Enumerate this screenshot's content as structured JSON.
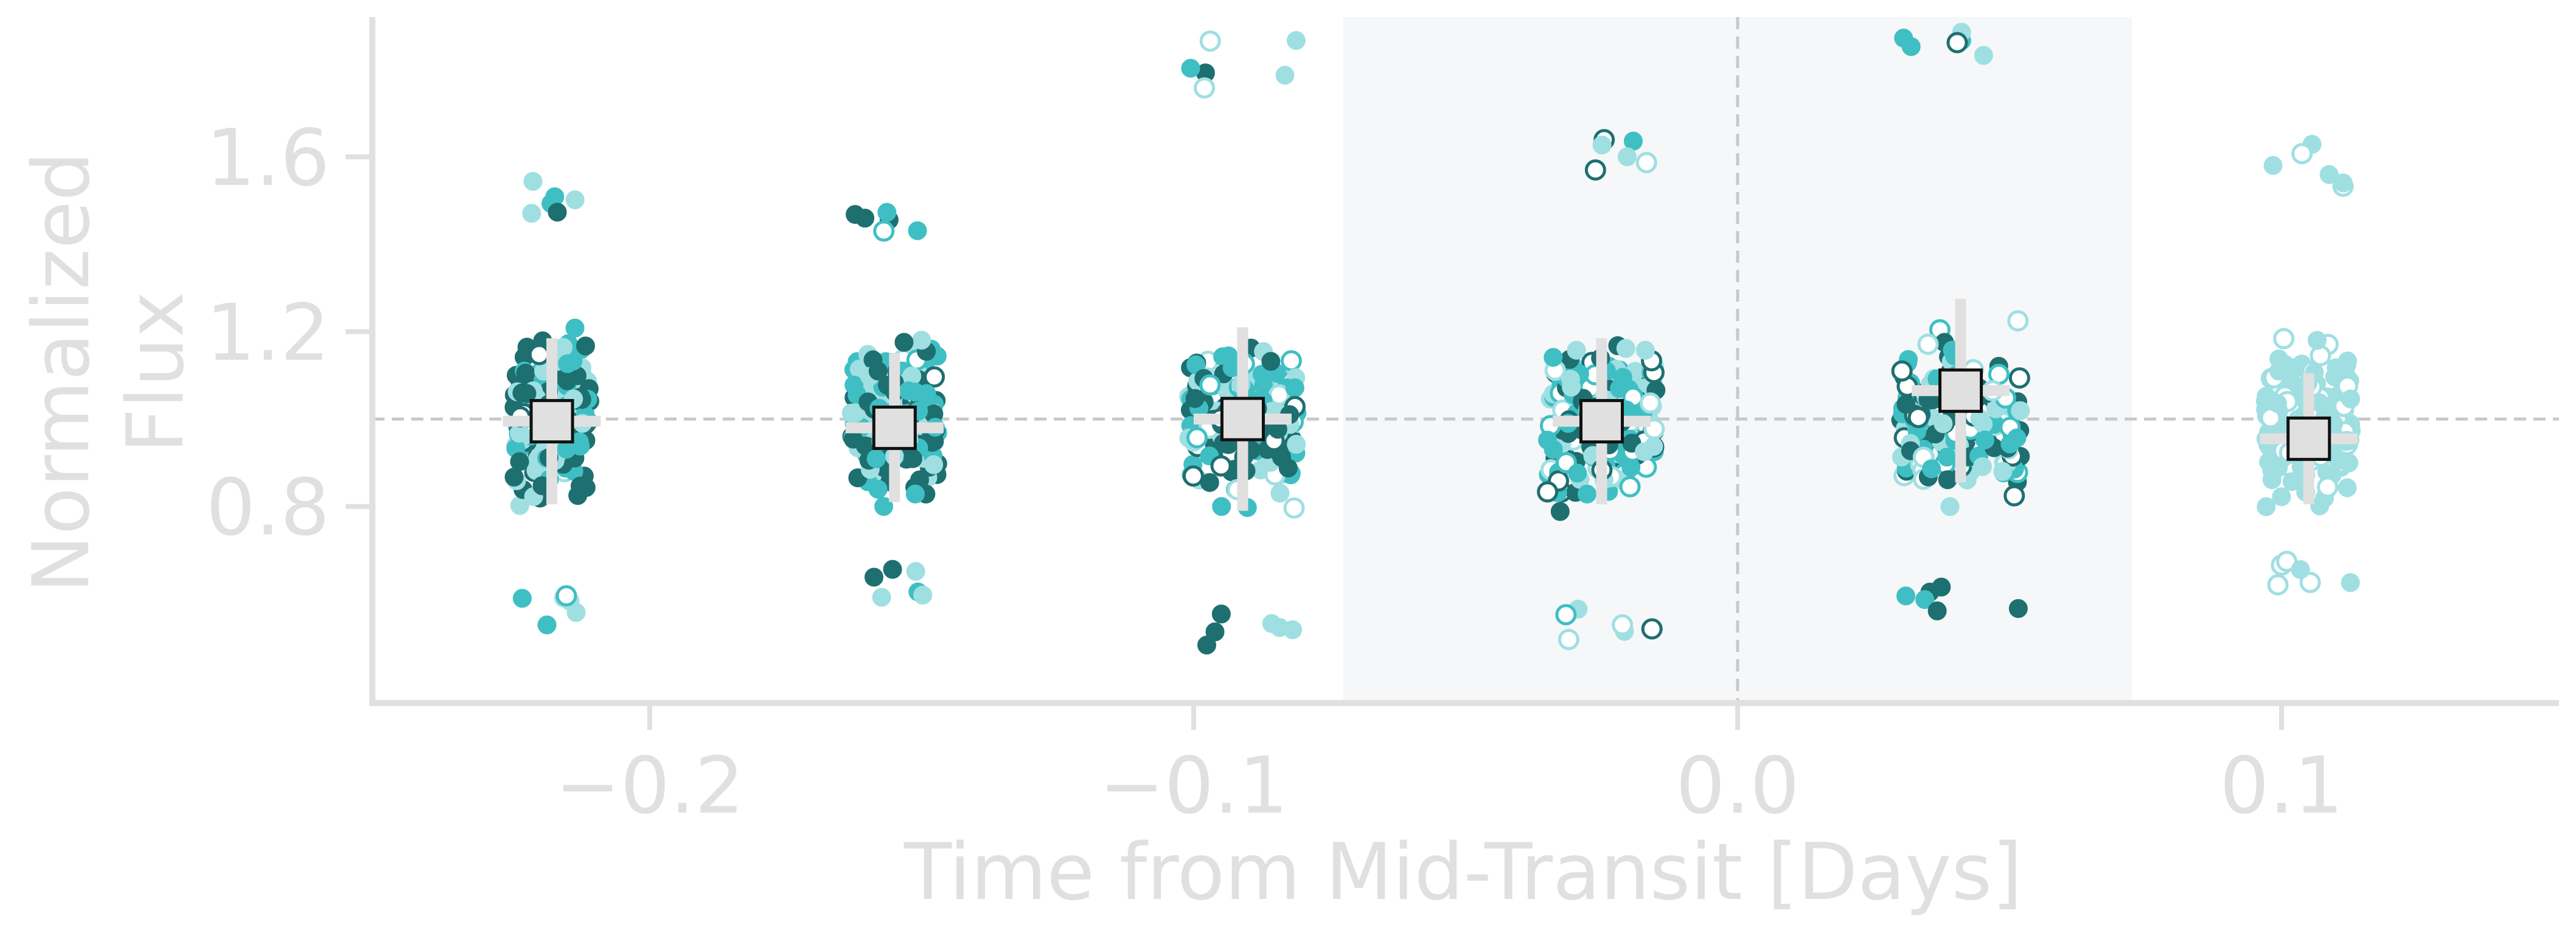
{
  "chart_data": {
    "type": "scatter",
    "title": "",
    "xlabel": "Time from Mid-Transit [Days]",
    "ylabel_lines": [
      "Normalized",
      "Flux"
    ],
    "xlim": [
      -0.251,
      0.151
    ],
    "ylim": [
      0.35,
      1.92
    ],
    "x_ticks": [
      -0.2,
      -0.1,
      0.0,
      0.1
    ],
    "x_tick_labels": [
      "−0.2",
      "−0.1",
      "0.0",
      "0.1"
    ],
    "y_ticks": [
      0.8,
      1.2,
      1.6
    ],
    "y_tick_labels": [
      "0.8",
      "1.2",
      "1.6"
    ],
    "reference_line_y": 1.0,
    "reference_line_x": 0.0,
    "transit_window": [
      -0.0725,
      0.0725
    ],
    "grid": false,
    "colors": {
      "dark_teal": "#1e6f70",
      "mid_teal": "#3fbfc3",
      "light_teal": "#9fdfe2",
      "reference_line": "#c8c8c8",
      "transit_shade": "#f5f7f9",
      "axis": "#e0e0e0",
      "bin_fill": "#e0e0e0",
      "bin_edge": "#111111",
      "errorbar": "#e0e0e0"
    },
    "series": [
      {
        "cluster_centers": [
          -0.218,
          -0.155,
          -0.091,
          -0.025,
          0.041,
          0.105
        ],
        "clusters": [
          {
            "x_center": -0.218,
            "half_width": 0.007,
            "y_min": 0.52,
            "y_max": 1.57,
            "colors": [
              "dark_teal",
              "mid_teal",
              "light_teal"
            ],
            "open_fraction": 0.05
          },
          {
            "x_center": -0.155,
            "half_width": 0.008,
            "y_min": 0.59,
            "y_max": 1.55,
            "colors": [
              "dark_teal",
              "mid_teal",
              "light_teal"
            ],
            "open_fraction": 0.05
          },
          {
            "x_center": -0.091,
            "half_width": 0.01,
            "y_min": 0.48,
            "y_max": 1.87,
            "colors": [
              "light_teal",
              "mid_teal",
              "dark_teal"
            ],
            "open_fraction": 0.2
          },
          {
            "x_center": -0.025,
            "half_width": 0.01,
            "y_min": 0.49,
            "y_max": 1.67,
            "colors": [
              "light_teal",
              "dark_teal",
              "mid_teal"
            ],
            "open_fraction": 0.3
          },
          {
            "x_center": 0.041,
            "half_width": 0.011,
            "y_min": 0.54,
            "y_max": 1.92,
            "colors": [
              "light_teal",
              "mid_teal",
              "dark_teal"
            ],
            "open_fraction": 0.35
          },
          {
            "x_center": 0.105,
            "half_width": 0.008,
            "y_min": 0.62,
            "y_max": 1.63,
            "colors": [
              "light_teal"
            ],
            "open_fraction": 0.25
          }
        ]
      }
    ],
    "binned_points": [
      {
        "x": -0.218,
        "y": 0.995,
        "yerr": 0.19,
        "xerr": 0.009
      },
      {
        "x": -0.155,
        "y": 0.98,
        "yerr": 0.17,
        "xerr": 0.009
      },
      {
        "x": -0.091,
        "y": 1.0,
        "yerr": 0.21,
        "xerr": 0.009
      },
      {
        "x": -0.025,
        "y": 0.995,
        "yerr": 0.19,
        "xerr": 0.009
      },
      {
        "x": 0.041,
        "y": 1.065,
        "yerr": 0.21,
        "xerr": 0.009
      },
      {
        "x": 0.105,
        "y": 0.955,
        "yerr": 0.15,
        "xerr": 0.009
      }
    ]
  }
}
